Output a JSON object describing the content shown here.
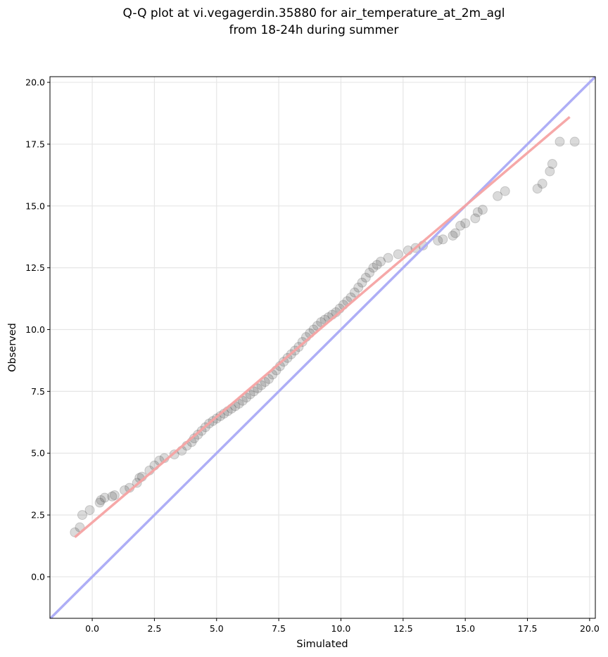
{
  "chart_data": {
    "type": "scatter",
    "title": [
      "Q-Q plot at vi.vegagerdin.35880 for air_temperature_at_2m_agl",
      "from 18-24h during summer"
    ],
    "x_label": "Simulated",
    "y_label": "Observed",
    "xlim": [
      -1.7,
      20.23
    ],
    "ylim": [
      -1.68,
      20.23
    ],
    "xticks": [
      {
        "value": 0,
        "label": "0.0"
      },
      2.5,
      {
        "value": 5,
        "label": "5.0"
      },
      7.5,
      {
        "value": 10,
        "label": "10.0"
      },
      12.5,
      {
        "value": 15,
        "label": "15.0"
      },
      17.5,
      {
        "value": 20,
        "label": "20.0"
      }
    ],
    "yticks": [
      {
        "value": 0,
        "label": "0.0"
      },
      2.5,
      {
        "value": 5,
        "label": "5.0"
      },
      7.5,
      {
        "value": 10,
        "label": "10.0"
      },
      12.5,
      {
        "value": 15,
        "label": "15.0"
      },
      17.5,
      {
        "value": 20,
        "label": "20.0"
      }
    ],
    "grid": true,
    "color": "#333333",
    "x": [
      -0.7,
      -0.5,
      -0.4,
      -0.1,
      0.3,
      0.35,
      0.5,
      0.8,
      0.9,
      1.3,
      1.5,
      1.8,
      1.9,
      2.0,
      2.3,
      2.5,
      2.7,
      2.9,
      3.3,
      3.6,
      3.8,
      4.0,
      4.1,
      4.25,
      4.4,
      4.55,
      4.7,
      4.85,
      5.0,
      5.15,
      5.3,
      5.45,
      5.6,
      5.75,
      5.9,
      6.05,
      6.2,
      6.35,
      6.5,
      6.65,
      6.8,
      6.95,
      7.1,
      7.25,
      7.4,
      7.55,
      7.7,
      7.85,
      8.0,
      8.15,
      8.3,
      8.45,
      8.6,
      8.75,
      8.9,
      9.05,
      9.2,
      9.35,
      9.5,
      9.65,
      9.8,
      9.95,
      10.1,
      10.25,
      10.4,
      10.55,
      10.7,
      10.85,
      11.0,
      11.15,
      11.3,
      11.45,
      11.6,
      11.9,
      12.3,
      12.7,
      13.0,
      13.3,
      13.9,
      14.1,
      14.5,
      14.6,
      14.8,
      15.0,
      15.4,
      15.5,
      15.7,
      16.3,
      16.6,
      17.9,
      18.1,
      18.4,
      18.5,
      18.8,
      19.4
    ],
    "values": [
      1.8,
      2.0,
      2.5,
      2.7,
      3.0,
      3.1,
      3.2,
      3.25,
      3.3,
      3.5,
      3.6,
      3.8,
      4.0,
      4.05,
      4.3,
      4.5,
      4.7,
      4.8,
      4.95,
      5.1,
      5.3,
      5.45,
      5.6,
      5.75,
      5.9,
      6.05,
      6.2,
      6.3,
      6.4,
      6.5,
      6.6,
      6.7,
      6.8,
      6.9,
      7.0,
      7.12,
      7.25,
      7.38,
      7.5,
      7.62,
      7.75,
      7.88,
      8.0,
      8.18,
      8.35,
      8.52,
      8.7,
      8.85,
      9.0,
      9.15,
      9.3,
      9.5,
      9.7,
      9.85,
      10.0,
      10.15,
      10.3,
      10.4,
      10.5,
      10.6,
      10.7,
      10.85,
      11.0,
      11.15,
      11.3,
      11.5,
      11.7,
      11.9,
      12.1,
      12.3,
      12.5,
      12.62,
      12.75,
      12.9,
      13.05,
      13.2,
      13.3,
      13.4,
      13.6,
      13.65,
      13.8,
      13.9,
      14.2,
      14.3,
      14.5,
      14.75,
      14.85,
      15.4,
      15.6,
      15.7,
      15.9,
      16.4,
      16.7,
      17.6,
      17.6
    ],
    "reference_line": {
      "x": [
        -1.7,
        20.23
      ],
      "y": [
        -1.7,
        20.23
      ],
      "color": "#aaaaf5"
    },
    "fit_line": {
      "x": [
        -0.7,
        19.2
      ],
      "y": [
        1.6,
        18.6
      ],
      "color": "#f5a3a3"
    }
  }
}
